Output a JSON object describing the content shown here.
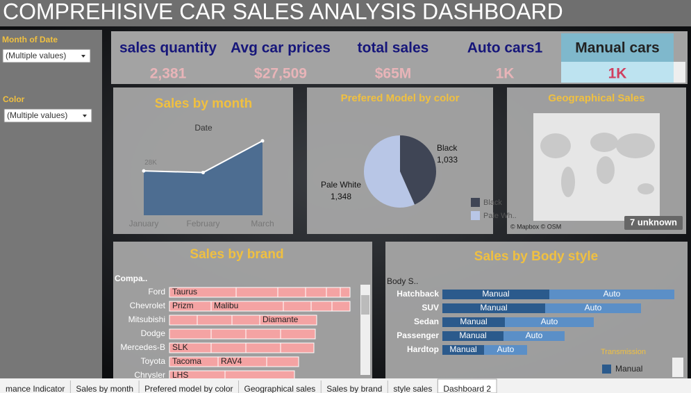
{
  "header": {
    "title": "COMPREHISIVE CAR SALES ANALYSIS DASHBOARD"
  },
  "filters": [
    {
      "label": "Month of Date",
      "value": "(Multiple values)"
    },
    {
      "label": "Color",
      "value": "(Multiple values)"
    }
  ],
  "kpis": [
    {
      "label": "sales quantity",
      "value": "2,381"
    },
    {
      "label": "Avg car prices",
      "value": "$27,509"
    },
    {
      "label": "total sales",
      "value": "$65M"
    },
    {
      "label": "Auto cars1",
      "value": "1K"
    },
    {
      "label": "Manual cars",
      "value": "1K"
    }
  ],
  "charts": [
    {
      "type": "area",
      "title": "Sales by month",
      "x_label": "Date",
      "categories": [
        "January",
        "February",
        "March"
      ],
      "values": [
        28000,
        27000,
        47000
      ],
      "value_labels": [
        "28K",
        null,
        null
      ],
      "ylim": [
        0,
        50000
      ],
      "color": "#4d6d91"
    },
    {
      "type": "pie",
      "title": "Prefered Model by color",
      "categories": [
        "Black",
        "Pale White"
      ],
      "values": [
        1033,
        1348
      ],
      "value_labels": [
        "1,033",
        "1,348"
      ],
      "legend_labels": [
        "Black",
        "Pale Wh.."
      ],
      "colors": [
        "#3f4555",
        "#b8c6e6"
      ]
    },
    {
      "type": "map",
      "title": "Geographical Sales",
      "badge": "7 unknown",
      "attribution": "© Mapbox © OSM"
    },
    {
      "type": "stacked-bar",
      "title": "Sales by brand",
      "header": "Compa..",
      "xlim": [
        0,
        130
      ],
      "color": "#f4a3a3",
      "rows": [
        {
          "name": "Ford",
          "segments": [
            {
              "model": "Taurus",
              "value": 48
            },
            {
              "model": null,
              "value": 30
            },
            {
              "model": null,
              "value": 20
            },
            {
              "model": null,
              "value": 15
            },
            {
              "model": null,
              "value": 10
            },
            {
              "model": null,
              "value": 7
            }
          ]
        },
        {
          "name": "Chevrolet",
          "segments": [
            {
              "model": "Prizm",
              "value": 30
            },
            {
              "model": "Malibu",
              "value": 52
            },
            {
              "model": null,
              "value": 20
            },
            {
              "model": null,
              "value": 15
            },
            {
              "model": null,
              "value": 13
            }
          ]
        },
        {
          "name": "Mitsubishi",
          "segments": [
            {
              "model": null,
              "value": 20
            },
            {
              "model": null,
              "value": 25
            },
            {
              "model": null,
              "value": 20
            },
            {
              "model": "Diamante",
              "value": 41
            }
          ]
        },
        {
          "name": "Dodge",
          "segments": [
            {
              "model": null,
              "value": 30
            },
            {
              "model": null,
              "value": 25
            },
            {
              "model": null,
              "value": 25
            },
            {
              "model": null,
              "value": 25
            }
          ]
        },
        {
          "name": "Mercedes-B",
          "segments": [
            {
              "model": "SLK",
              "value": 30
            },
            {
              "model": null,
              "value": 25
            },
            {
              "model": null,
              "value": 25
            },
            {
              "model": null,
              "value": 24
            }
          ]
        },
        {
          "name": "Toyota",
          "segments": [
            {
              "model": "Tacoma",
              "value": 35
            },
            {
              "model": "RAV4",
              "value": 35
            },
            {
              "model": null,
              "value": 23
            }
          ]
        },
        {
          "name": "Chrysler",
          "segments": [
            {
              "model": "LHS",
              "value": 40
            },
            {
              "model": null,
              "value": 50
            }
          ]
        }
      ]
    },
    {
      "type": "stacked-bar-series",
      "title": "Sales by Body style",
      "header": "Body S..",
      "xlim": [
        0,
        170
      ],
      "legend_title": "Transmission",
      "categories": [
        "Hatchback",
        "SUV",
        "Sedan",
        "Passenger",
        "Hardtop"
      ],
      "series": [
        {
          "name": "Manual",
          "color": "#2b5a8c",
          "values": [
            77,
            74,
            45,
            44,
            30
          ]
        },
        {
          "name": "Auto",
          "color": "#5b8fc7",
          "values": [
            90,
            69,
            64,
            44,
            31
          ]
        }
      ]
    }
  ],
  "tabs": [
    "mance Indicator",
    "Sales by month",
    "Prefered model by color",
    "Geographical sales",
    "Sales by brand",
    "style sales",
    "Dashboard 2"
  ]
}
